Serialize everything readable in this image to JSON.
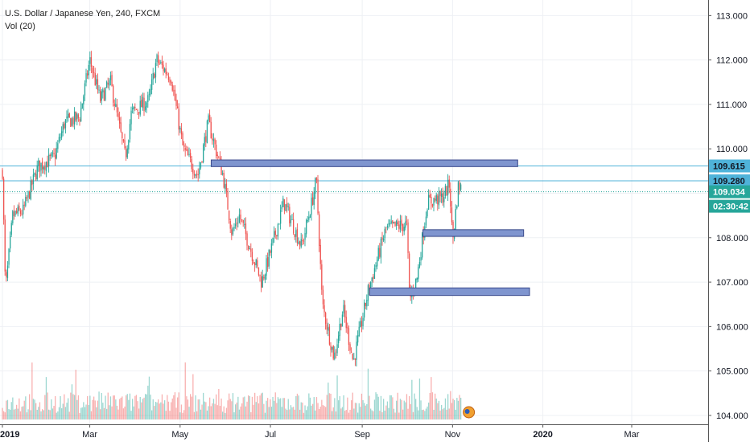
{
  "header": {
    "symbol_title": "U.S. Dollar / Japanese Yen, 240, FXCM",
    "indicator": "Vol (20)"
  },
  "colors": {
    "up": "#26a69a",
    "down": "#ef5350",
    "zone_fill": "#7f95cf",
    "zone_stroke": "#3a4a8c",
    "level_line": "#4fb3d9",
    "tag_fill": "#4fb3d9",
    "last_price_tag": "#26a69a",
    "grid": "#eef0f4",
    "axis_border": "#555555"
  },
  "chart_data": {
    "type": "candlestick",
    "symbol": "USDJPY",
    "timeframe": "240",
    "source": "FXCM",
    "x_axis": {
      "ticks": [
        "2019",
        "Mar",
        "May",
        "Jul",
        "Sep",
        "Nov",
        "2020",
        "Mar"
      ],
      "range": [
        "2019-01-01",
        "2020-04-20"
      ]
    },
    "y_axis": {
      "ticks": [
        "113.000",
        "112.000",
        "111.000",
        "110.000",
        "109.000",
        "108.000",
        "107.000",
        "106.000",
        "105.000",
        "104.000"
      ],
      "range": [
        103.8,
        113.35
      ]
    },
    "price_path": [
      [
        "2019-01-01",
        109.5
      ],
      [
        "2019-01-03",
        106.8
      ],
      [
        "2019-01-08",
        108.5
      ],
      [
        "2019-01-15",
        108.6
      ],
      [
        "2019-01-25",
        109.6
      ],
      [
        "2019-02-05",
        109.8
      ],
      [
        "2019-02-12",
        110.6
      ],
      [
        "2019-02-22",
        110.7
      ],
      [
        "2019-03-01",
        112.0
      ],
      [
        "2019-03-08",
        111.1
      ],
      [
        "2019-03-15",
        111.5
      ],
      [
        "2019-03-25",
        109.8
      ],
      [
        "2019-03-29",
        110.8
      ],
      [
        "2019-04-10",
        111.1
      ],
      [
        "2019-04-15",
        112.0
      ],
      [
        "2019-04-25",
        111.6
      ],
      [
        "2019-05-03",
        110.0
      ],
      [
        "2019-05-13",
        109.4
      ],
      [
        "2019-05-20",
        110.6
      ],
      [
        "2019-05-30",
        109.4
      ],
      [
        "2019-06-05",
        108.1
      ],
      [
        "2019-06-10",
        108.5
      ],
      [
        "2019-06-25",
        107.0
      ],
      [
        "2019-07-02",
        107.8
      ],
      [
        "2019-07-10",
        108.8
      ],
      [
        "2019-07-22",
        107.8
      ],
      [
        "2019-07-29",
        108.8
      ],
      [
        "2019-08-01",
        109.3
      ],
      [
        "2019-08-05",
        106.5
      ],
      [
        "2019-08-13",
        105.3
      ],
      [
        "2019-08-19",
        106.4
      ],
      [
        "2019-08-26",
        105.2
      ],
      [
        "2019-09-05",
        106.8
      ],
      [
        "2019-09-17",
        108.2
      ],
      [
        "2019-10-01",
        108.3
      ],
      [
        "2019-10-03",
        106.6
      ],
      [
        "2019-10-08",
        107.1
      ],
      [
        "2019-10-15",
        108.8
      ],
      [
        "2019-10-25",
        108.9
      ],
      [
        "2019-10-30",
        109.2
      ],
      [
        "2019-11-01",
        107.9
      ],
      [
        "2019-11-05",
        109.2
      ],
      [
        "2019-11-07",
        109.1
      ]
    ],
    "zones": [
      {
        "start": "2019-05-22",
        "end": "2019-12-15",
        "low": 109.6,
        "high": 109.75
      },
      {
        "start": "2019-10-12",
        "end": "2019-12-19",
        "low": 108.03,
        "high": 108.18
      },
      {
        "start": "2019-09-06",
        "end": "2019-12-23",
        "low": 106.7,
        "high": 106.87
      }
    ],
    "horizontal_levels": [
      109.615,
      109.28
    ],
    "last_price": 109.034,
    "price_tags": [
      {
        "label": "109.615",
        "style": "level"
      },
      {
        "label": "109.280",
        "style": "level"
      },
      {
        "label": "109.034",
        "style": "last"
      },
      {
        "label": "02:30:42",
        "style": "countdown"
      }
    ],
    "volume": {
      "name": "Vol (20)",
      "show_bars": true
    },
    "grid": true
  }
}
